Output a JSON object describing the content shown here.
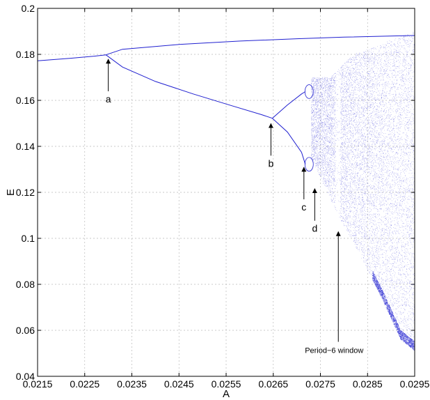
{
  "chart_data": {
    "type": "scatter",
    "title": "",
    "xlabel": "A",
    "ylabel": "E",
    "xlim": [
      0.0215,
      0.0295
    ],
    "ylim": [
      0.04,
      0.2
    ],
    "grid": true,
    "color": "#1f1fd0",
    "x_ticks": [
      "0.0215",
      "0.0225",
      "0.0235",
      "0.0245",
      "0.0255",
      "0.0265",
      "0.0275",
      "0.0285",
      "0.0295"
    ],
    "y_ticks": [
      "0.04",
      "0.06",
      "0.08",
      "0.1",
      "0.12",
      "0.14",
      "0.16",
      "0.18",
      "0.2"
    ],
    "branches": {
      "period1": [
        [
          0.0215,
          0.1772
        ],
        [
          0.0222,
          0.1783
        ],
        [
          0.0227,
          0.1792
        ],
        [
          0.02295,
          0.1798
        ]
      ],
      "upper": [
        [
          0.02295,
          0.1798
        ],
        [
          0.0233,
          0.1822
        ],
        [
          0.0245,
          0.1843
        ],
        [
          0.0258,
          0.1858
        ],
        [
          0.027,
          0.1868
        ],
        [
          0.028,
          0.1875
        ],
        [
          0.0295,
          0.1882
        ]
      ],
      "lower": [
        [
          0.02295,
          0.1798
        ],
        [
          0.0233,
          0.1745
        ],
        [
          0.024,
          0.1682
        ],
        [
          0.0248,
          0.1628
        ],
        [
          0.0256,
          0.1578
        ],
        [
          0.02625,
          0.1538
        ],
        [
          0.02648,
          0.1522
        ]
      ],
      "p4_upper_upper": [
        [
          0.02648,
          0.1522
        ],
        [
          0.0268,
          0.158
        ],
        [
          0.0271,
          0.1628
        ],
        [
          0.02718,
          0.1638
        ]
      ],
      "p4_upper_lower": [
        [
          0.02648,
          0.1522
        ],
        [
          0.0268,
          0.1462
        ],
        [
          0.0271,
          0.1374
        ],
        [
          0.02718,
          0.1322
        ]
      ]
    },
    "chaos_envelope": {
      "upper": [
        [
          0.0277,
          0.17
        ],
        [
          0.0282,
          0.18
        ],
        [
          0.0295,
          0.19
        ]
      ],
      "lower": [
        [
          0.0273,
          0.135
        ],
        [
          0.0278,
          0.113
        ],
        [
          0.0283,
          0.094
        ],
        [
          0.0288,
          0.074
        ],
        [
          0.0292,
          0.056
        ],
        [
          0.0295,
          0.051
        ]
      ]
    },
    "annotations": [
      {
        "label": "a",
        "x": 0.023,
        "y": 0.1785
      },
      {
        "label": "b",
        "x": 0.02645,
        "y": 0.1505
      },
      {
        "label": "c",
        "x": 0.02715,
        "y": 0.1315
      },
      {
        "label": "d",
        "x": 0.02738,
        "y": 0.1222
      },
      {
        "label": "Period−6 window",
        "x": 0.02788,
        "y": 0.1035
      }
    ]
  }
}
